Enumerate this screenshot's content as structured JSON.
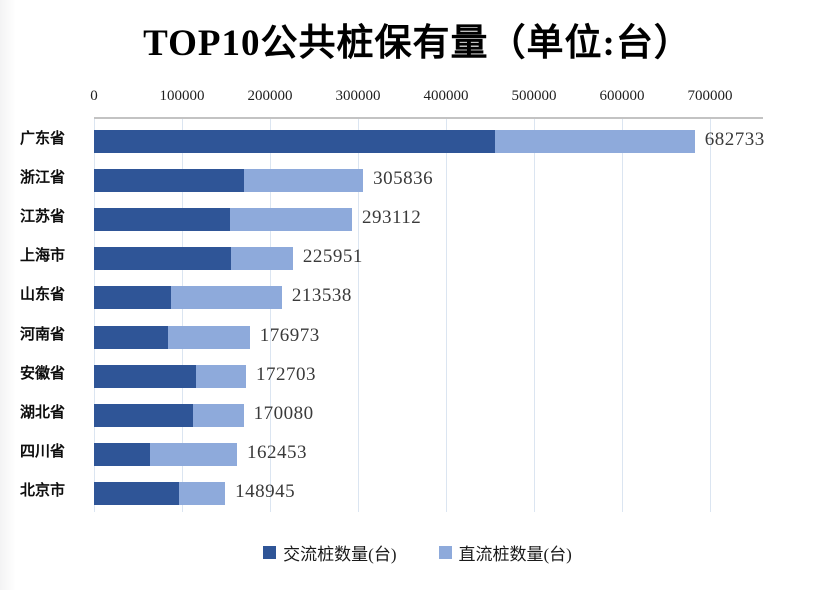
{
  "title": "TOP10公共桩保有量（单位:台）",
  "colors": {
    "ac_series": "#2F5597",
    "dc_series": "#8EAADB",
    "gridline": "#dbe5f1",
    "plot_top_border": "#c3c3c3",
    "value_label": "#3a3a3a"
  },
  "legend": {
    "ac_label": "交流桩数量(台)",
    "dc_label": "直流桩数量(台)"
  },
  "chart_data": {
    "type": "bar",
    "orientation": "horizontal",
    "stacked": true,
    "title": "TOP10公共桩保有量（单位:台）",
    "categories": [
      "广东省",
      "浙江省",
      "江苏省",
      "上海市",
      "山东省",
      "河南省",
      "安徽省",
      "湖北省",
      "四川省",
      "北京市"
    ],
    "series": [
      {
        "name": "交流桩数量(台)",
        "color": "#2F5597",
        "values": [
          456000,
          170000,
          154000,
          156000,
          88000,
          84000,
          116000,
          113000,
          64000,
          97000
        ]
      },
      {
        "name": "直流桩数量(台)",
        "color": "#8EAADB",
        "values": [
          226733,
          135836,
          139112,
          69951,
          125538,
          92973,
          56703,
          57080,
          98453,
          51945
        ]
      }
    ],
    "totals": [
      682733,
      305836,
      293112,
      225951,
      213538,
      176973,
      172703,
      170080,
      162453,
      148945
    ],
    "total_labels": [
      "682733",
      "305836",
      "293112",
      "225951",
      "213538",
      "176973",
      "172703",
      "170080",
      "162453",
      "148945"
    ],
    "x_ticks": [
      0,
      100000,
      200000,
      300000,
      400000,
      500000,
      600000,
      700000
    ],
    "x_tick_labels": [
      "0",
      "100000",
      "200000",
      "300000",
      "400000",
      "500000",
      "600000",
      "700000"
    ],
    "xlim": [
      0,
      760000
    ],
    "gridlines": true,
    "axis_position": "top",
    "legend_position": "bottom"
  }
}
